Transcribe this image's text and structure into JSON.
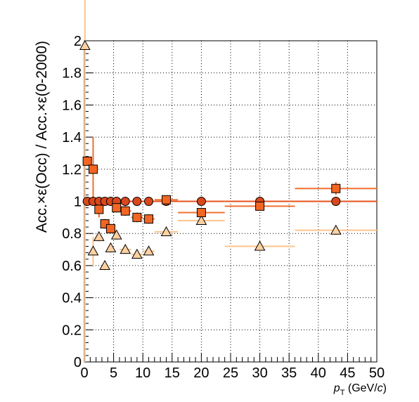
{
  "chart_data": {
    "type": "scatter",
    "title": "",
    "xlabel": {
      "main": "p",
      "sub": "T",
      "unit_prefix": " (GeV/",
      "unit_var": "c",
      "unit_suffix": ")"
    },
    "ylabel": "Acc.×ε(Occ) / Acc.×ε(0-2000)",
    "xlim": [
      0,
      50
    ],
    "ylim": [
      0,
      2
    ],
    "xticks": [
      "0",
      "5",
      "10",
      "15",
      "20",
      "25",
      "30",
      "35",
      "40",
      "45",
      "50"
    ],
    "yticks": [
      "0",
      "0.2",
      "0.4",
      "0.6",
      "0.8",
      "1",
      "1.2",
      "1.4",
      "1.6",
      "1.8",
      "2"
    ],
    "grid": true,
    "colors": {
      "circle_fill": "#d9481c",
      "circle_line": "#e8501a",
      "square_fill": "#f26522",
      "square_line": "#f07030",
      "triangle_fill": "#fdd0a2",
      "triangle_line": "#fdc48a"
    },
    "series": [
      {
        "marker": "circle",
        "points": [
          {
            "x": 0.5,
            "y": 1.0,
            "xerr": 0.5,
            "yerr": 0
          },
          {
            "x": 1.5,
            "y": 1.0,
            "xerr": 0.5,
            "yerr": 0
          },
          {
            "x": 2.5,
            "y": 1.0,
            "xerr": 0.5,
            "yerr": 0
          },
          {
            "x": 3.5,
            "y": 1.0,
            "xerr": 0.5,
            "yerr": 0
          },
          {
            "x": 4.5,
            "y": 1.0,
            "xerr": 0.5,
            "yerr": 0
          },
          {
            "x": 5.5,
            "y": 1.0,
            "xerr": 0.5,
            "yerr": 0
          },
          {
            "x": 7.0,
            "y": 1.0,
            "xerr": 1.0,
            "yerr": 0
          },
          {
            "x": 9.0,
            "y": 1.0,
            "xerr": 1.0,
            "yerr": 0
          },
          {
            "x": 11.0,
            "y": 1.0,
            "xerr": 1.0,
            "yerr": 0
          },
          {
            "x": 14.0,
            "y": 1.0,
            "xerr": 2.0,
            "yerr": 0
          },
          {
            "x": 20.0,
            "y": 1.0,
            "xerr": 4.0,
            "yerr": 0
          },
          {
            "x": 30.0,
            "y": 1.0,
            "xerr": 6.0,
            "yerr": 0
          },
          {
            "x": 43.0,
            "y": 1.0,
            "xerr": 7.0,
            "yerr": 0
          }
        ]
      },
      {
        "marker": "square",
        "points": [
          {
            "x": 0.5,
            "y": 1.25,
            "xerr": 0.5,
            "yerr": 0.03
          },
          {
            "x": 1.5,
            "y": 1.2,
            "xerr": 0.5,
            "yerr": 0.2
          },
          {
            "x": 2.5,
            "y": 0.95,
            "xerr": 0.5,
            "yerr": 0.05
          },
          {
            "x": 3.5,
            "y": 0.86,
            "xerr": 0.5,
            "yerr": 0.03
          },
          {
            "x": 4.5,
            "y": 0.83,
            "xerr": 0.5,
            "yerr": 0.03
          },
          {
            "x": 5.5,
            "y": 0.96,
            "xerr": 0.5,
            "yerr": 0.03
          },
          {
            "x": 7.0,
            "y": 0.94,
            "xerr": 1.0,
            "yerr": 0.03
          },
          {
            "x": 9.0,
            "y": 0.9,
            "xerr": 1.0,
            "yerr": 0.03
          },
          {
            "x": 11.0,
            "y": 0.89,
            "xerr": 1.0,
            "yerr": 0.03
          },
          {
            "x": 14.0,
            "y": 1.01,
            "xerr": 2.0,
            "yerr": 0.02
          },
          {
            "x": 20.0,
            "y": 0.93,
            "xerr": 4.0,
            "yerr": 0.02
          },
          {
            "x": 30.0,
            "y": 0.97,
            "xerr": 6.0,
            "yerr": 0.02
          },
          {
            "x": 43.0,
            "y": 1.08,
            "xerr": 7.0,
            "yerr": 0.04
          }
        ]
      },
      {
        "marker": "triangle",
        "points": [
          {
            "x": 0.1,
            "y": 1.97,
            "xerr": 0.1,
            "yerr": 1.97
          },
          {
            "x": 1.5,
            "y": 0.69,
            "xerr": 0.5,
            "yerr": 0.09
          },
          {
            "x": 2.5,
            "y": 0.78,
            "xerr": 0.5,
            "yerr": 0.03
          },
          {
            "x": 3.5,
            "y": 0.6,
            "xerr": 0.5,
            "yerr": 0.03
          },
          {
            "x": 4.5,
            "y": 0.71,
            "xerr": 0.5,
            "yerr": 0.03
          },
          {
            "x": 5.5,
            "y": 0.79,
            "xerr": 0.5,
            "yerr": 0.03
          },
          {
            "x": 7.0,
            "y": 0.7,
            "xerr": 1.0,
            "yerr": 0.03
          },
          {
            "x": 9.0,
            "y": 0.67,
            "xerr": 1.0,
            "yerr": 0.02
          },
          {
            "x": 11.0,
            "y": 0.69,
            "xerr": 1.0,
            "yerr": 0.02
          },
          {
            "x": 14.0,
            "y": 0.81,
            "xerr": 2.0,
            "yerr": 0.02
          },
          {
            "x": 20.0,
            "y": 0.88,
            "xerr": 4.0,
            "yerr": 0.02
          },
          {
            "x": 30.0,
            "y": 0.72,
            "xerr": 6.0,
            "yerr": 0.02
          },
          {
            "x": 43.0,
            "y": 0.82,
            "xerr": 7.0,
            "yerr": 0.03
          }
        ]
      }
    ]
  }
}
